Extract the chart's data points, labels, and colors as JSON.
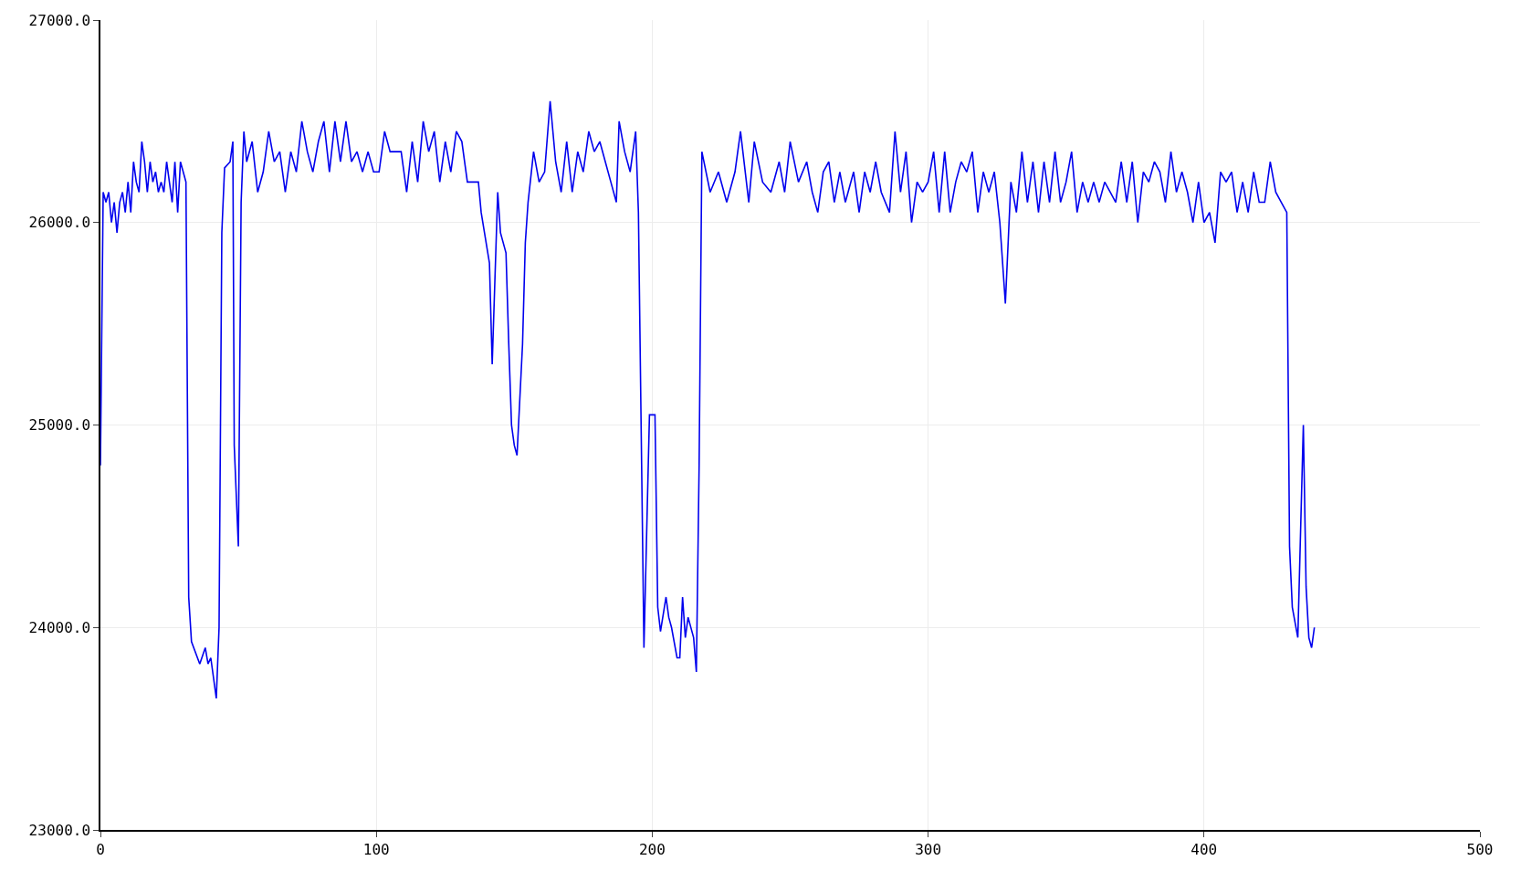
{
  "chart_data": {
    "type": "line",
    "x": [
      0,
      1,
      2,
      3,
      4,
      5,
      6,
      7,
      8,
      9,
      10,
      11,
      12,
      13,
      14,
      15,
      16,
      17,
      18,
      19,
      20,
      21,
      22,
      23,
      24,
      25,
      26,
      27,
      28,
      29,
      30,
      31,
      32,
      33,
      36,
      38,
      39,
      40,
      42,
      43,
      44,
      45,
      47,
      48,
      48.5,
      50,
      51,
      52,
      53,
      55,
      57,
      59,
      61,
      63,
      65,
      67,
      69,
      71,
      73,
      75,
      77,
      79,
      81,
      83,
      85,
      87,
      89,
      91,
      93,
      95,
      97,
      99,
      101,
      103,
      105,
      107,
      109,
      111,
      113,
      115,
      117,
      119,
      121,
      123,
      125,
      127,
      129,
      131,
      133,
      135,
      137,
      138,
      141,
      142,
      144,
      145,
      147,
      148,
      149,
      150,
      151,
      153,
      154,
      155,
      157,
      159,
      161,
      163,
      165,
      167,
      169,
      171,
      173,
      175,
      177,
      179,
      181,
      183,
      185,
      187,
      188,
      190,
      192,
      194,
      195,
      197,
      199,
      201,
      202,
      203,
      205,
      206,
      207,
      209,
      210,
      211,
      212,
      213,
      215,
      216,
      217,
      218,
      221,
      224,
      227,
      230,
      232,
      235,
      237,
      240,
      243,
      246,
      248,
      250,
      253,
      256,
      258,
      260,
      262,
      264,
      266,
      268,
      270,
      273,
      275,
      277,
      279,
      281,
      283,
      286,
      288,
      290,
      292,
      294,
      296,
      298,
      300,
      302,
      304,
      306,
      308,
      310,
      312,
      314,
      316,
      318,
      320,
      322,
      324,
      326,
      328,
      330,
      332,
      334,
      336,
      338,
      340,
      342,
      344,
      346,
      348,
      350,
      352,
      354,
      356,
      358,
      360,
      362,
      364,
      366,
      368,
      370,
      372,
      374,
      376,
      378,
      380,
      382,
      384,
      386,
      388,
      390,
      392,
      394,
      396,
      398,
      400,
      402,
      404,
      406,
      408,
      410,
      412,
      414,
      416,
      418,
      420,
      422,
      424,
      426,
      428,
      430,
      431,
      432,
      434,
      436,
      437,
      438,
      439,
      440
    ],
    "series": [
      {
        "color": "#0000ee",
        "values": [
          24800,
          26150,
          26100,
          26150,
          26000,
          26100,
          25950,
          26100,
          26150,
          26050,
          26200,
          26050,
          26300,
          26200,
          26150,
          26400,
          26300,
          26150,
          26300,
          26200,
          26250,
          26150,
          26200,
          26150,
          26300,
          26200,
          26100,
          26300,
          26050,
          26300,
          26250,
          26200,
          24150,
          23930,
          23820,
          23900,
          23820,
          23850,
          23650,
          24000,
          25950,
          26270,
          26300,
          26400,
          24900,
          24400,
          26100,
          26450,
          26300,
          26400,
          26150,
          26250,
          26450,
          26300,
          26350,
          26150,
          26350,
          26250,
          26500,
          26350,
          26250,
          26400,
          26500,
          26250,
          26500,
          26300,
          26500,
          26300,
          26350,
          26250,
          26350,
          26250,
          26250,
          26450,
          26350,
          26350,
          26350,
          26150,
          26400,
          26200,
          26500,
          26350,
          26450,
          26200,
          26400,
          26250,
          26450,
          26400,
          26200,
          26200,
          26200,
          26050,
          25800,
          25300,
          26150,
          25950,
          25850,
          25400,
          25000,
          24900,
          24850,
          25400,
          25900,
          26100,
          26350,
          26200,
          26250,
          26600,
          26300,
          26150,
          26400,
          26150,
          26350,
          26250,
          26450,
          26350,
          26400,
          26300,
          26200,
          26100,
          26500,
          26350,
          26250,
          26450,
          26050,
          23900,
          25050,
          25050,
          24100,
          23980,
          24150,
          24050,
          24000,
          23850,
          23850,
          24150,
          23950,
          24050,
          23950,
          23780,
          24800,
          26350,
          26150,
          26250,
          26100,
          26250,
          26450,
          26100,
          26400,
          26200,
          26150,
          26300,
          26150,
          26400,
          26200,
          26300,
          26150,
          26050,
          26250,
          26300,
          26100,
          26250,
          26100,
          26250,
          26050,
          26250,
          26150,
          26300,
          26150,
          26050,
          26450,
          26150,
          26350,
          26000,
          26200,
          26150,
          26200,
          26350,
          26050,
          26350,
          26050,
          26200,
          26300,
          26250,
          26350,
          26050,
          26250,
          26150,
          26250,
          26000,
          25600,
          26200,
          26050,
          26350,
          26100,
          26300,
          26050,
          26300,
          26100,
          26350,
          26100,
          26200,
          26350,
          26050,
          26200,
          26100,
          26200,
          26100,
          26200,
          26150,
          26100,
          26300,
          26100,
          26300,
          26000,
          26250,
          26200,
          26300,
          26250,
          26100,
          26350,
          26150,
          26250,
          26150,
          26000,
          26200,
          26000,
          26050,
          25900,
          26250,
          26200,
          26250,
          26050,
          26200,
          26050,
          26250,
          26100,
          26100,
          26300,
          26150,
          26100,
          26050,
          24400,
          24100,
          23950,
          25000,
          24200,
          23950,
          23900,
          24000
        ]
      }
    ],
    "xlim": [
      0,
      500
    ],
    "xticks": [
      0,
      100,
      200,
      300,
      400,
      500
    ],
    "ylim": [
      23000,
      27000
    ],
    "yticks": [
      {
        "value": 23000,
        "label": "23000.0"
      },
      {
        "value": 24000,
        "label": "24000.0"
      },
      {
        "value": 25000,
        "label": "25000.0"
      },
      {
        "value": 26000,
        "label": "26000.0"
      },
      {
        "value": 27000,
        "label": "27000.0"
      }
    ],
    "grid": true,
    "marker": "none",
    "line_style": "solid"
  }
}
